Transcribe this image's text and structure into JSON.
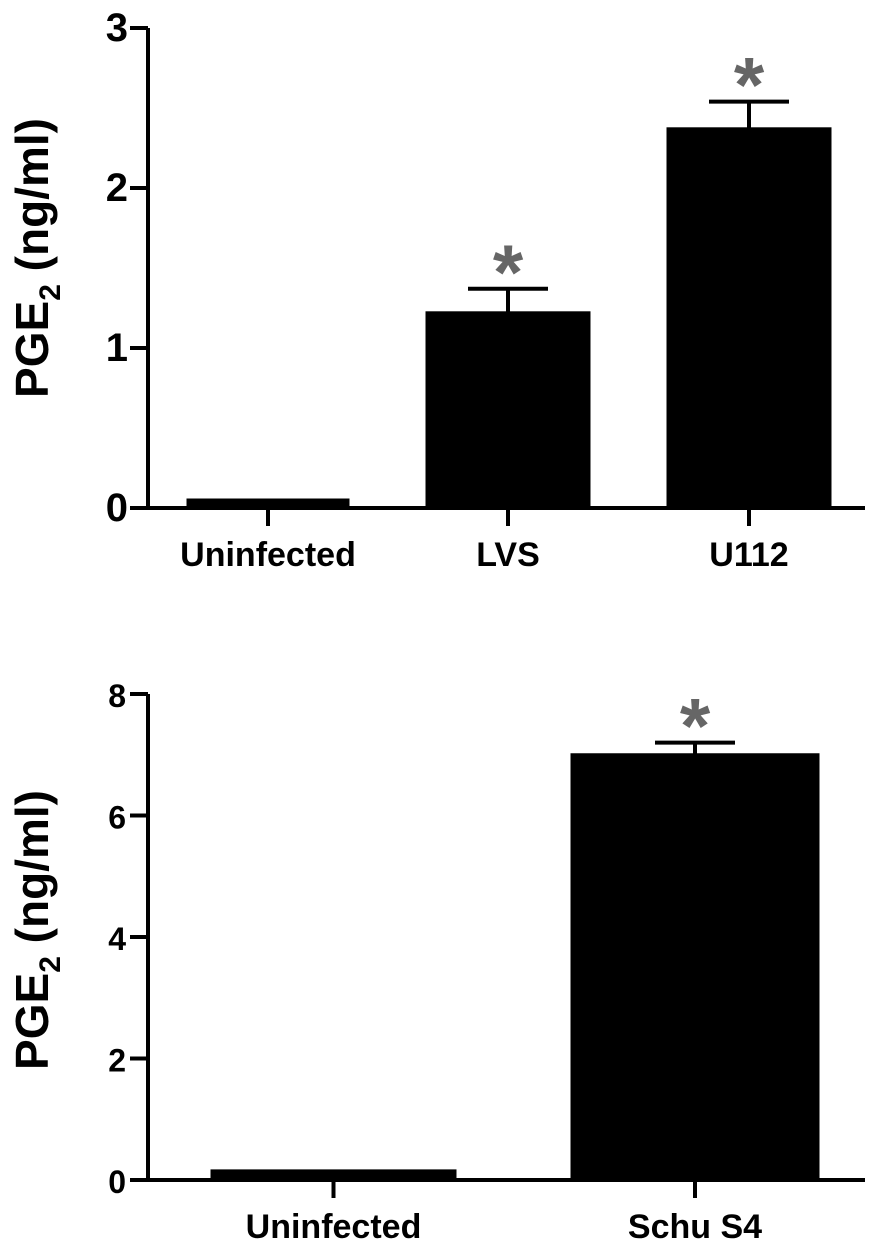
{
  "colors": {
    "bar": "#000000",
    "significance": "#666666",
    "axis": "#000000"
  },
  "chart_data": [
    {
      "type": "bar",
      "title": "",
      "xlabel": "",
      "ylabel": {
        "main": "PGE",
        "subscript": "2",
        "unit": " (ng/ml)"
      },
      "ylim": [
        0,
        3
      ],
      "yticks": [
        "0",
        "1",
        "2",
        "3"
      ],
      "categories": [
        "Uninfected",
        "LVS",
        "U112"
      ],
      "values": [
        0.05,
        1.22,
        2.37
      ],
      "errors": [
        0.0,
        0.15,
        0.17
      ],
      "significance": [
        "",
        "*",
        "*"
      ],
      "grid": false
    },
    {
      "type": "bar",
      "title": "",
      "xlabel": "",
      "ylabel": {
        "main": "PGE",
        "subscript": "2",
        "unit": " (ng/ml)"
      },
      "ylim": [
        0,
        8
      ],
      "yticks": [
        "0",
        "2",
        "4",
        "6",
        "8"
      ],
      "categories": [
        "Uninfected",
        "Schu S4"
      ],
      "values": [
        0.15,
        7.0
      ],
      "errors": [
        0.0,
        0.2
      ],
      "significance": [
        "",
        "*"
      ],
      "grid": false
    }
  ]
}
